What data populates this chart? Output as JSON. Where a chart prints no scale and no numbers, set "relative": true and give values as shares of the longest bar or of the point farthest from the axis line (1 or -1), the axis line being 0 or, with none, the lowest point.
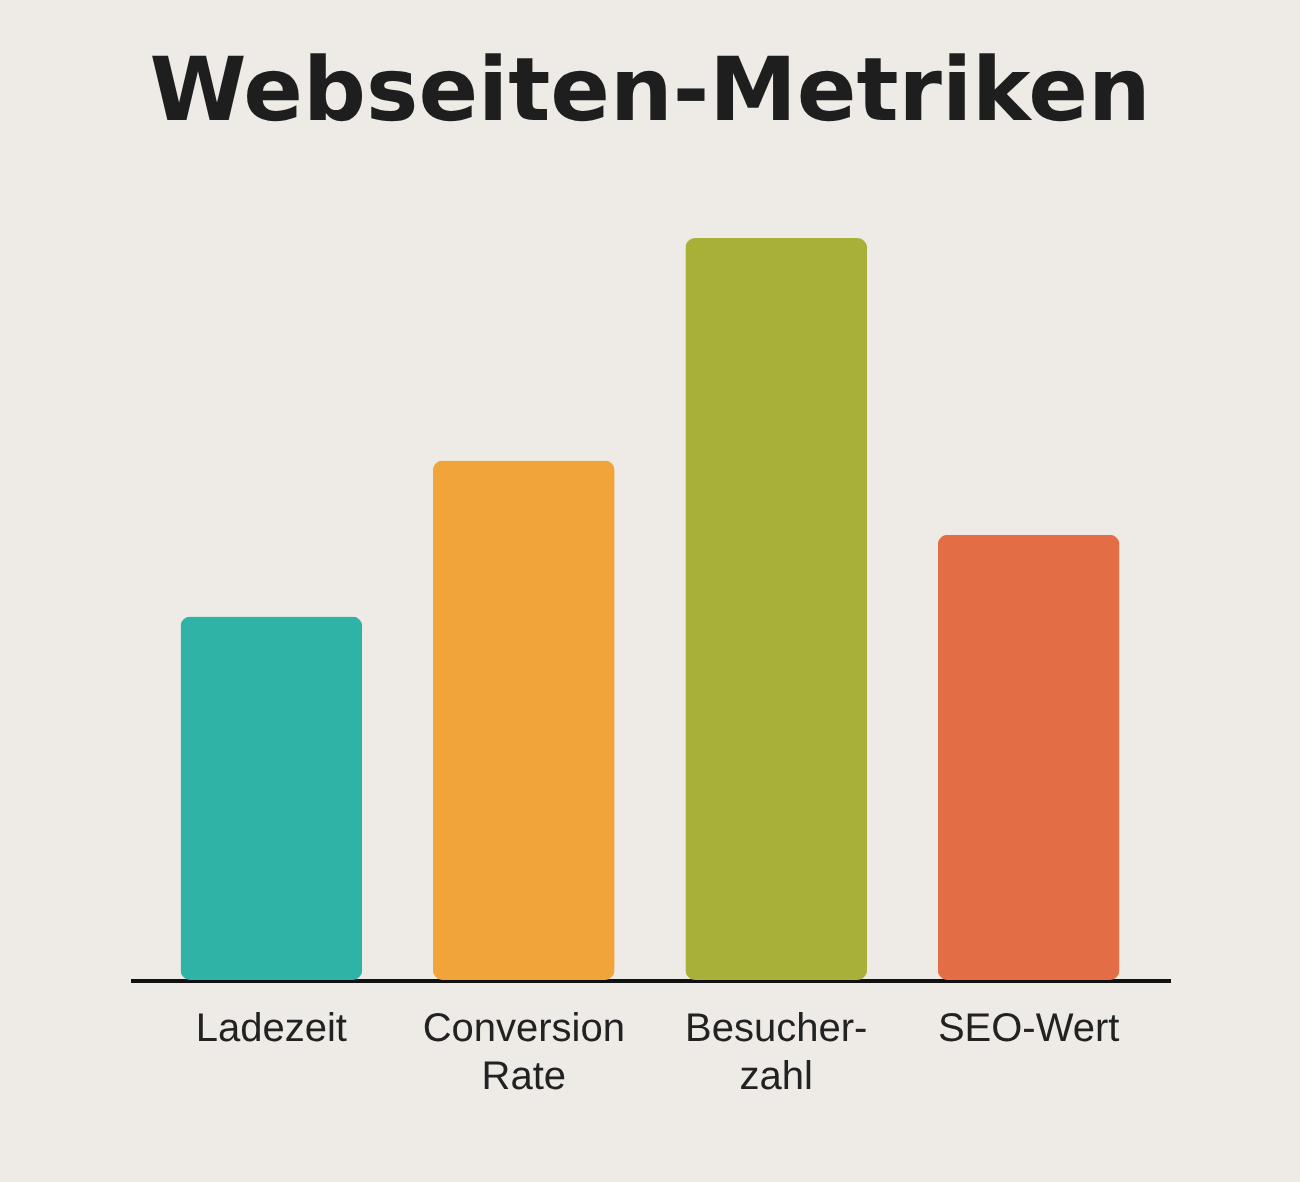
{
  "chart_data": {
    "type": "bar",
    "title": "Webseiten-Metriken",
    "relative": true,
    "categories": [
      "Ladezeit",
      "Conversion Rate",
      "Besucher-zahl",
      "SEO-Wert"
    ],
    "values": [
      0.49,
      0.7,
      1,
      0.6
    ],
    "colors": [
      "#2fb3a6",
      "#f0a43a",
      "#a9b038",
      "#e36d45"
    ]
  }
}
